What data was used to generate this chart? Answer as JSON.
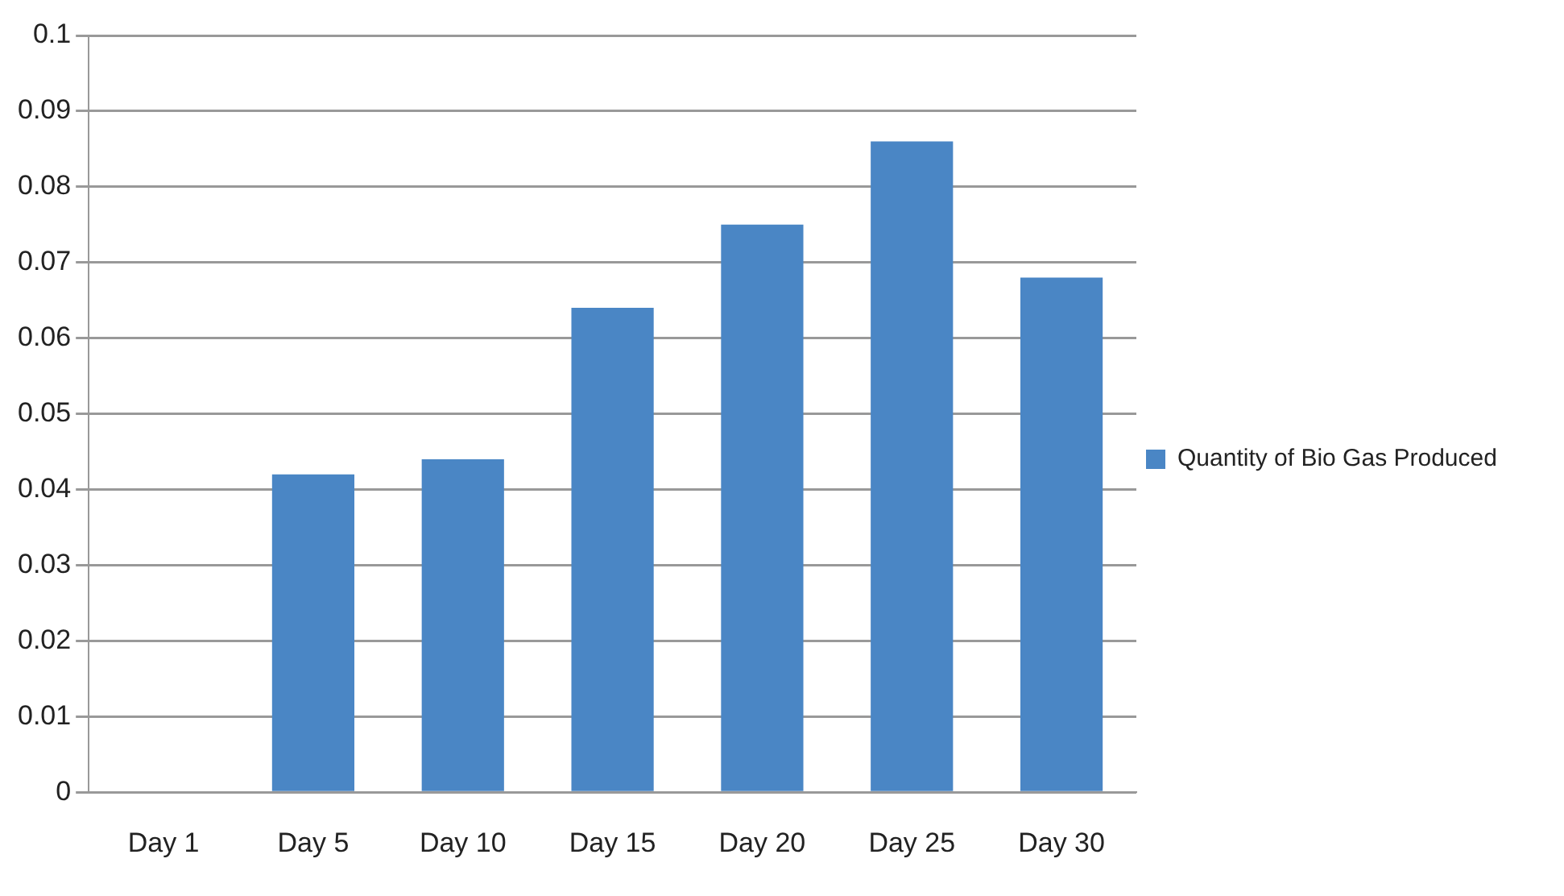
{
  "chart_data": {
    "type": "bar",
    "categories": [
      "Day 1",
      "Day 5",
      "Day 10",
      "Day 15",
      "Day 20",
      "Day 25",
      "Day 30"
    ],
    "series": [
      {
        "name": "Quantity of Bio Gas Produced",
        "color": "#4a86c5",
        "values": [
          0,
          0.042,
          0.044,
          0.064,
          0.075,
          0.086,
          0.068
        ]
      }
    ],
    "ylim": [
      0,
      0.1
    ],
    "yticks": [
      0,
      0.01,
      0.02,
      0.03,
      0.04,
      0.05,
      0.06,
      0.07,
      0.08,
      0.09,
      0.1
    ],
    "grid": "y",
    "legend": "right"
  }
}
